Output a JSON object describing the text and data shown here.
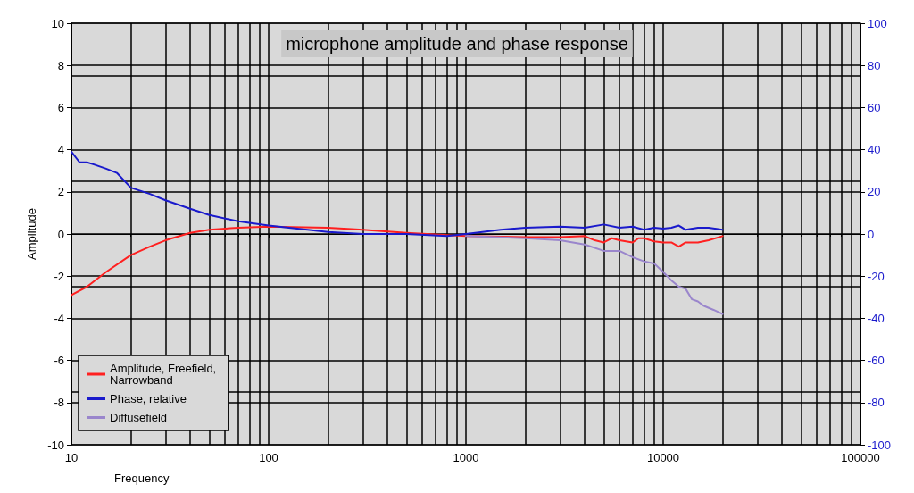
{
  "chart_data": {
    "type": "line",
    "title": "microphone amplitude and phase response",
    "xlabel": "Frequency",
    "ylabel": "Amplitude",
    "log": "x",
    "xlim": [
      10,
      100000
    ],
    "xticks": [
      10,
      100,
      1000,
      10000,
      100000
    ],
    "ylim": [
      -10,
      10
    ],
    "yticks": [
      -10,
      -8,
      -6,
      -4,
      -2,
      0,
      2,
      4,
      6,
      8,
      10
    ],
    "y2lim": [
      -100,
      100
    ],
    "y2ticks": [
      -100,
      -80,
      -60,
      -40,
      -20,
      0,
      20,
      40,
      60,
      80,
      100
    ],
    "grid": true,
    "legend": "bottom left",
    "marker": "none",
    "line_style": "solid",
    "series": [
      {
        "name": "Amplitude, Freefield, Narrowband",
        "color": "#ff2020",
        "x": [
          10,
          12,
          15,
          20,
          25,
          30,
          40,
          50,
          70,
          100,
          200,
          300,
          500,
          1000,
          2000,
          3000,
          4000,
          4500,
          5000,
          5500,
          6000,
          7000,
          7500,
          8000,
          9000,
          10000,
          11000,
          12000,
          13000,
          15000,
          17000,
          20000
        ],
        "values": [
          -2.9,
          -2.5,
          -1.8,
          -1.0,
          -0.6,
          -0.3,
          0.05,
          0.2,
          0.3,
          0.35,
          0.3,
          0.2,
          0.05,
          -0.1,
          -0.15,
          -0.15,
          -0.1,
          -0.3,
          -0.4,
          -0.2,
          -0.3,
          -0.4,
          -0.2,
          -0.2,
          -0.35,
          -0.4,
          -0.4,
          -0.6,
          -0.4,
          -0.4,
          -0.3,
          -0.1
        ]
      },
      {
        "name": "Phase, relative",
        "color": "#1a1acc",
        "axis": "y2",
        "x": [
          10,
          11,
          12,
          13,
          15,
          17,
          20,
          25,
          30,
          40,
          50,
          70,
          100,
          200,
          300,
          500,
          800,
          1000,
          1500,
          2000,
          3000,
          4000,
          5000,
          6000,
          7000,
          8000,
          9000,
          10000,
          11000,
          12000,
          13000,
          15000,
          17000,
          20000
        ],
        "values": [
          39,
          34,
          34,
          33,
          31,
          29,
          22,
          19,
          16,
          12,
          9,
          6,
          4,
          1,
          0,
          0,
          -1,
          0,
          2,
          3,
          3.5,
          3,
          4.5,
          3,
          3.5,
          2,
          3,
          2.5,
          3,
          4,
          2,
          3,
          3,
          2
        ]
      },
      {
        "name": "Diffusefield",
        "color": "#9a86cc",
        "x": [
          1000,
          2000,
          3000,
          4000,
          5000,
          6000,
          7000,
          8000,
          9000,
          10000,
          11000,
          12000,
          13000,
          14000,
          15000,
          16000,
          18000,
          20000
        ],
        "values": [
          -0.1,
          -0.2,
          -0.3,
          -0.5,
          -0.8,
          -0.8,
          -1.1,
          -1.3,
          -1.4,
          -1.8,
          -2.2,
          -2.5,
          -2.6,
          -3.1,
          -3.2,
          -3.4,
          -3.6,
          -3.8
        ]
      }
    ]
  }
}
